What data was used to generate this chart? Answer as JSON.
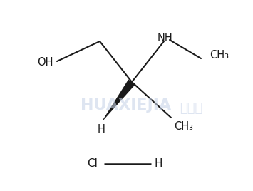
{
  "background_color": "#ffffff",
  "watermark_color": "#c8d4e8",
  "watermark_sub": "化学加",
  "line_color": "#1a1a1a",
  "text_color": "#1a1a1a",
  "oh_label": "OH",
  "nh_label": "NH",
  "ch3_top_label": "CH₃",
  "ch3_bottom_label": "CH₃",
  "h_label": "H",
  "cl_label": "Cl",
  "h_salt_label": "H",
  "font_size": 10.5,
  "font_size_small": 9.5
}
